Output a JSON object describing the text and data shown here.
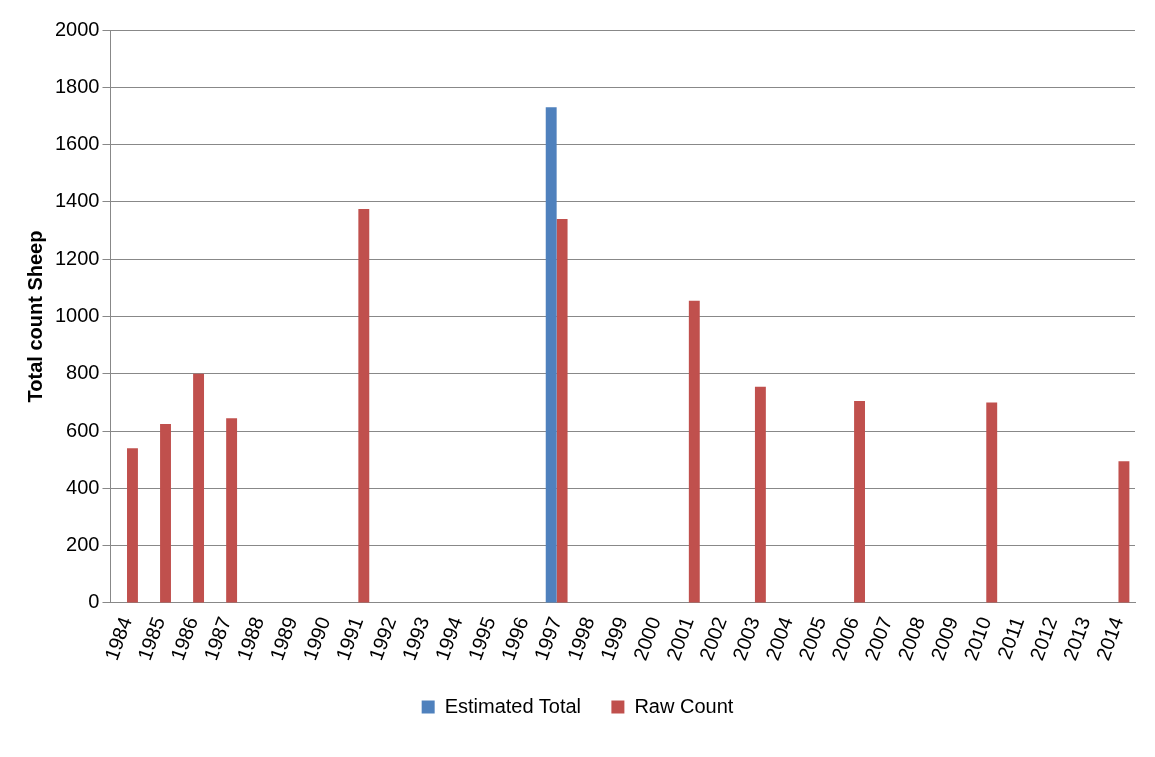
{
  "chart_data": {
    "type": "bar",
    "ylabel": "Total count Sheep",
    "categories": [
      "1984",
      "1985",
      "1986",
      "1987",
      "1988",
      "1989",
      "1990",
      "1991",
      "1992",
      "1993",
      "1994",
      "1995",
      "1996",
      "1997",
      "1998",
      "1999",
      "2000",
      "2001",
      "2002",
      "2003",
      "2004",
      "2005",
      "2006",
      "2007",
      "2008",
      "2009",
      "2010",
      "2011",
      "2012",
      "2013",
      "2014"
    ],
    "series": [
      {
        "name": "Estimated Total",
        "color": "#4f81bd",
        "values": [
          null,
          null,
          null,
          null,
          null,
          null,
          null,
          null,
          null,
          null,
          null,
          null,
          null,
          1730,
          null,
          null,
          null,
          null,
          null,
          null,
          null,
          null,
          null,
          null,
          null,
          null,
          null,
          null,
          null,
          null,
          null
        ]
      },
      {
        "name": "Raw Count",
        "color": "#c0504d",
        "values": [
          540,
          625,
          800,
          645,
          null,
          null,
          null,
          1375,
          null,
          null,
          null,
          null,
          null,
          1340,
          null,
          null,
          null,
          1055,
          null,
          755,
          null,
          null,
          705,
          null,
          null,
          null,
          700,
          null,
          null,
          null,
          495
        ]
      }
    ],
    "ylim": [
      0,
      2000
    ],
    "yticks": [
      0,
      200,
      400,
      600,
      800,
      1000,
      1200,
      1400,
      1600,
      1800,
      2000
    ],
    "grid": "y",
    "legend": "bottom"
  }
}
